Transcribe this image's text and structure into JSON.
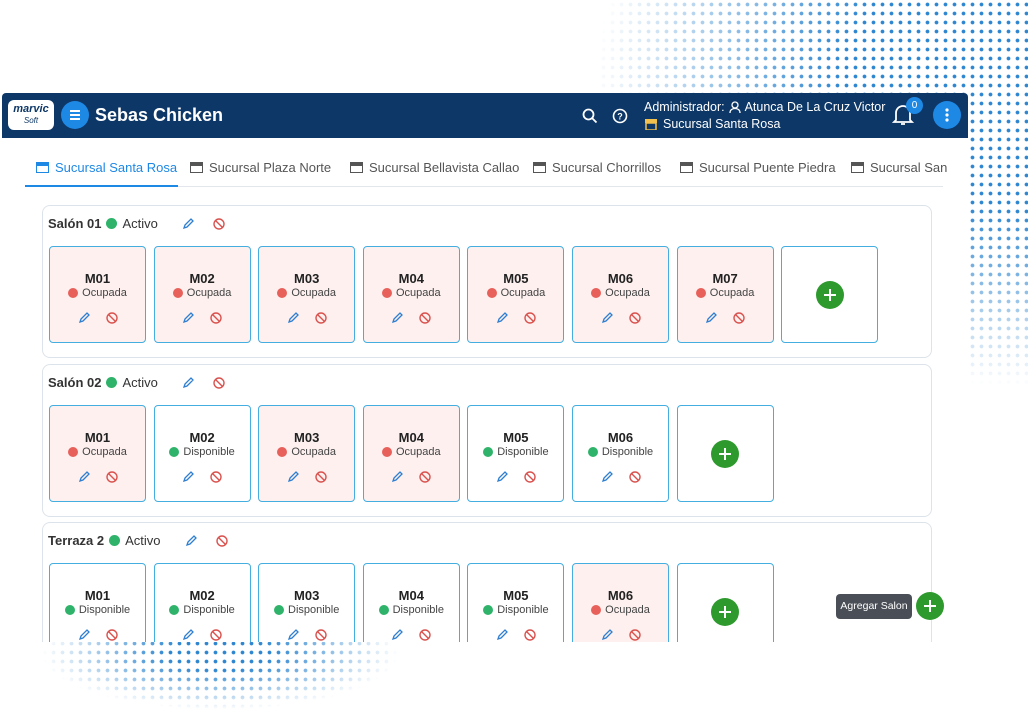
{
  "app": {
    "logo_top": "marvic",
    "logo_bottom": "Soft",
    "title": "Sebas Chicken",
    "role_label": "Administrador:",
    "user": "Atunca De La Cruz Victor",
    "branch": "Sucursal Santa Rosa",
    "notifications": 0
  },
  "tabs": [
    "Sucursal Santa Rosa",
    "Sucursal Plaza Norte",
    "Sucursal Bellavista Callao",
    "Sucursal Chorrillos",
    "Sucursal Puente Piedra",
    "Sucursal San"
  ],
  "statuses": [
    {
      "label": "Ocupada",
      "dot": "#e8605a",
      "bg": "#fdf0ef"
    },
    {
      "label": "Disponible",
      "dot": "#2fb36a",
      "bg": "#ffffff"
    }
  ],
  "room_status": {
    "label": "Activo",
    "dot": "#2fb36a"
  },
  "rooms": [
    {
      "name": "Salón 01",
      "tables": [
        {
          "name": "M01",
          "status": 0
        },
        {
          "name": "M02",
          "status": 0
        },
        {
          "name": "M03",
          "status": 0
        },
        {
          "name": "M04",
          "status": 0
        },
        {
          "name": "M05",
          "status": 0
        },
        {
          "name": "M06",
          "status": 0
        },
        {
          "name": "M07",
          "status": 0
        }
      ]
    },
    {
      "name": "Salón 02",
      "tables": [
        {
          "name": "M01",
          "status": 0
        },
        {
          "name": "M02",
          "status": 1
        },
        {
          "name": "M03",
          "status": 0
        },
        {
          "name": "M04",
          "status": 0
        },
        {
          "name": "M05",
          "status": 1
        },
        {
          "name": "M06",
          "status": 1
        }
      ]
    },
    {
      "name": "Terraza 2",
      "tables": [
        {
          "name": "M01",
          "status": 1
        },
        {
          "name": "M02",
          "status": 1
        },
        {
          "name": "M03",
          "status": 1
        },
        {
          "name": "M04",
          "status": 1
        },
        {
          "name": "M05",
          "status": 1
        },
        {
          "name": "M06",
          "status": 0
        }
      ]
    }
  ],
  "tooltip": "Agregar Salon"
}
